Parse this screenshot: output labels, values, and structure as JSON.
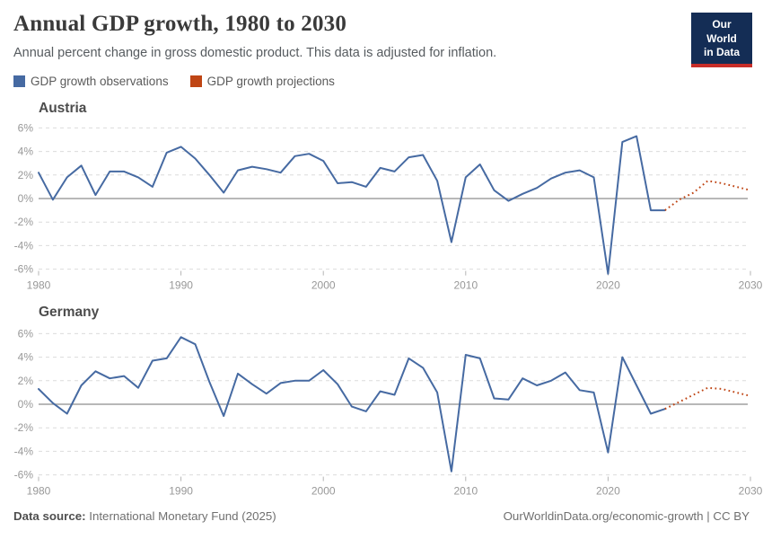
{
  "header": {
    "title": "Annual GDP growth, 1980 to 2030",
    "subtitle": "Annual percent change in gross domestic product. This data is adjusted for inflation.",
    "logo_line1": "Our World",
    "logo_line2": "in Data"
  },
  "legend": [
    {
      "label": "GDP growth observations",
      "color": "#466AA2"
    },
    {
      "label": "GDP growth projections",
      "color": "#BF4514"
    }
  ],
  "footer": {
    "source_label": "Data source:",
    "source_value": "International Monetary Fund (2025)",
    "right_text": "OurWorldinData.org/economic-growth | CC BY"
  },
  "chart_data": [
    {
      "type": "line",
      "title": "Austria",
      "xlabel": "",
      "ylabel": "",
      "ylim": [
        -6.5,
        6.5
      ],
      "xlim": [
        1980,
        2030
      ],
      "grid": true,
      "legend_position": "top",
      "y_ticks": [
        {
          "value": 6,
          "label": "6%"
        },
        {
          "value": 4,
          "label": "4%"
        },
        {
          "value": 2,
          "label": "2%"
        },
        {
          "value": 0,
          "label": "0%"
        },
        {
          "value": -2,
          "label": "-2%"
        },
        {
          "value": -4,
          "label": "-4%"
        },
        {
          "value": -6,
          "label": "-6%"
        }
      ],
      "x_ticks": [
        {
          "value": 1980,
          "label": "1980"
        },
        {
          "value": 1990,
          "label": "1990"
        },
        {
          "value": 2000,
          "label": "2000"
        },
        {
          "value": 2010,
          "label": "2010"
        },
        {
          "value": 2020,
          "label": "2020"
        },
        {
          "value": 2030,
          "label": "2030"
        }
      ],
      "series": [
        {
          "name": "GDP growth observations",
          "style": "solid",
          "color": "#466AA2",
          "x_range": [
            1980,
            2024
          ],
          "values": [
            2.2,
            -0.1,
            1.8,
            2.8,
            0.3,
            2.3,
            2.3,
            1.8,
            1.0,
            3.9,
            4.4,
            3.4,
            2.0,
            0.5,
            2.4,
            2.7,
            2.5,
            2.2,
            3.6,
            3.8,
            3.2,
            1.3,
            1.4,
            1.0,
            2.6,
            2.3,
            3.5,
            3.7,
            1.5,
            -3.7,
            1.8,
            2.9,
            0.7,
            -0.2,
            0.4,
            0.9,
            1.7,
            2.2,
            2.4,
            1.8,
            -6.4,
            4.8,
            5.3,
            -1.0,
            -1.0
          ]
        },
        {
          "name": "GDP growth projections",
          "style": "dotted",
          "color": "#BF4514",
          "x_range": [
            2024,
            2030
          ],
          "values": [
            -1.0,
            -0.1,
            0.5,
            1.5,
            1.3,
            1.0,
            0.7
          ]
        }
      ]
    },
    {
      "type": "line",
      "title": "Germany",
      "xlabel": "",
      "ylabel": "",
      "ylim": [
        -6.5,
        6.5
      ],
      "xlim": [
        1980,
        2030
      ],
      "grid": true,
      "legend_position": "top",
      "y_ticks": [
        {
          "value": 6,
          "label": "6%"
        },
        {
          "value": 4,
          "label": "4%"
        },
        {
          "value": 2,
          "label": "2%"
        },
        {
          "value": 0,
          "label": "0%"
        },
        {
          "value": -2,
          "label": "-2%"
        },
        {
          "value": -4,
          "label": "-4%"
        },
        {
          "value": -6,
          "label": "-6%"
        }
      ],
      "x_ticks": [
        {
          "value": 1980,
          "label": "1980"
        },
        {
          "value": 1990,
          "label": "1990"
        },
        {
          "value": 2000,
          "label": "2000"
        },
        {
          "value": 2010,
          "label": "2010"
        },
        {
          "value": 2020,
          "label": "2020"
        },
        {
          "value": 2030,
          "label": "2030"
        }
      ],
      "series": [
        {
          "name": "GDP growth observations",
          "style": "solid",
          "color": "#466AA2",
          "x_range": [
            1980,
            2024
          ],
          "values": [
            1.3,
            0.1,
            -0.8,
            1.6,
            2.8,
            2.2,
            2.4,
            1.4,
            3.7,
            3.9,
            5.7,
            5.1,
            1.9,
            -1.0,
            2.6,
            1.7,
            0.9,
            1.8,
            2.0,
            2.0,
            2.9,
            1.7,
            -0.2,
            -0.6,
            1.1,
            0.8,
            3.9,
            3.1,
            1.0,
            -5.7,
            4.2,
            3.9,
            0.5,
            0.4,
            2.2,
            1.6,
            2.0,
            2.7,
            1.2,
            1.0,
            -4.1,
            4.0,
            1.6,
            -0.8,
            -0.4
          ]
        },
        {
          "name": "GDP growth projections",
          "style": "dotted",
          "color": "#BF4514",
          "x_range": [
            2024,
            2030
          ],
          "values": [
            -0.4,
            0.2,
            0.8,
            1.4,
            1.3,
            1.0,
            0.7
          ]
        }
      ]
    }
  ]
}
